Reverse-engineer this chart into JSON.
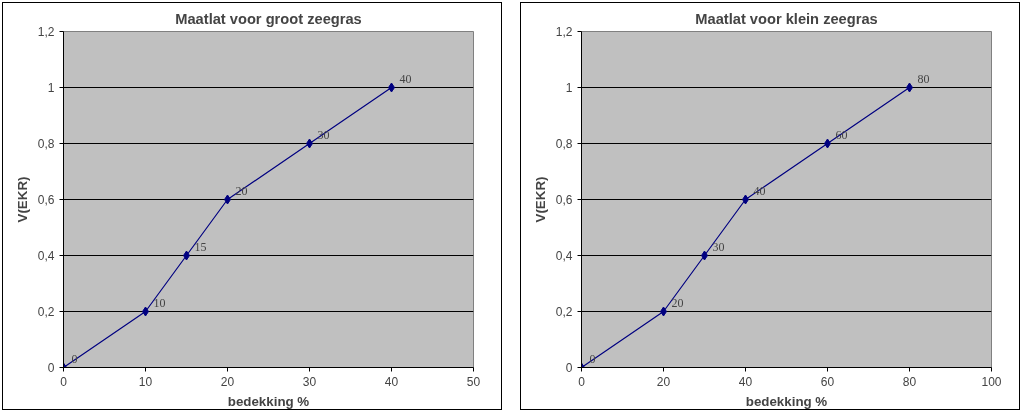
{
  "chart_data": [
    {
      "type": "line",
      "title": "Maatlat voor groot zeegras",
      "xlabel": "bedekking %",
      "ylabel": "V(EKR)",
      "x": [
        0,
        10,
        15,
        20,
        30,
        40
      ],
      "series": [
        {
          "color": "#000080",
          "values": [
            0,
            0.2,
            0.4,
            0.6,
            0.8,
            1
          ]
        }
      ],
      "annotations": [
        {
          "text": "0",
          "x": 0,
          "y": 0
        },
        {
          "text": "10",
          "x": 10,
          "y": 0.2
        },
        {
          "text": "15",
          "x": 15,
          "y": 0.4
        },
        {
          "text": "20",
          "x": 20,
          "y": 0.6
        },
        {
          "text": "30",
          "x": 30,
          "y": 0.8
        },
        {
          "text": "40",
          "x": 40,
          "y": 1
        }
      ],
      "xlim": [
        0,
        50
      ],
      "xticks": [
        0,
        10,
        20,
        30,
        40,
        50
      ],
      "ylim": [
        0,
        1.2
      ],
      "yticks": [
        0,
        {
          "value": 0.2,
          "label": "0,2"
        },
        {
          "value": 0.4,
          "label": "0,4"
        },
        {
          "value": 0.6,
          "label": "0,6"
        },
        {
          "value": 0.8,
          "label": "0,8"
        },
        1,
        {
          "value": 1.2,
          "label": "1,2"
        }
      ],
      "grid": "y",
      "marker": "diamond",
      "line_style": "solid"
    },
    {
      "type": "line",
      "title": "Maatlat voor klein zeegras",
      "xlabel": "bedekking %",
      "ylabel": "V(EKR)",
      "x": [
        0,
        20,
        30,
        40,
        60,
        80
      ],
      "series": [
        {
          "color": "#000080",
          "values": [
            0,
            0.2,
            0.4,
            0.6,
            0.8,
            1
          ]
        }
      ],
      "annotations": [
        {
          "text": "0",
          "x": 0,
          "y": 0
        },
        {
          "text": "20",
          "x": 20,
          "y": 0.2
        },
        {
          "text": "30",
          "x": 30,
          "y": 0.4
        },
        {
          "text": "40",
          "x": 40,
          "y": 0.6
        },
        {
          "text": "60",
          "x": 60,
          "y": 0.8
        },
        {
          "text": "80",
          "x": 80,
          "y": 1
        }
      ],
      "xlim": [
        0,
        100
      ],
      "xticks": [
        0,
        20,
        40,
        60,
        80,
        100
      ],
      "ylim": [
        0,
        1.2
      ],
      "yticks": [
        0,
        {
          "value": 0.2,
          "label": "0,2"
        },
        {
          "value": 0.4,
          "label": "0,4"
        },
        {
          "value": 0.6,
          "label": "0,6"
        },
        {
          "value": 0.8,
          "label": "0,8"
        },
        1,
        {
          "value": 1.2,
          "label": "1,2"
        }
      ],
      "grid": "y",
      "marker": "diamond",
      "line_style": "solid"
    }
  ]
}
